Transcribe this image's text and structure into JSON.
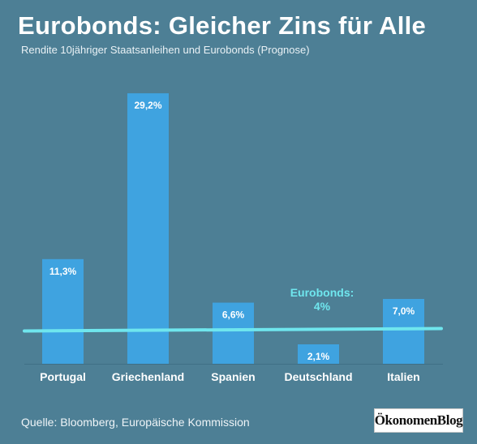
{
  "title": "Eurobonds: Gleicher Zins für Alle",
  "subtitle": "Rendite 10jähriger Staatsanleihen und Eurobonds (Prognose)",
  "source": "Quelle: Bloomberg, Europäische Kommission",
  "logo": "ÖkonomenBlog",
  "colors": {
    "background": "#4d7f95",
    "bar": "#3fa3e0",
    "eurobond_line": "#6fe6ee",
    "eurobond_label": "#6fe6ee"
  },
  "chart_data": {
    "type": "bar",
    "title": "Eurobonds: Gleicher Zins für Alle",
    "subtitle": "Rendite 10jähriger Staatsanleihen und Eurobonds (Prognose)",
    "categories": [
      "Portugal",
      "Griechenland",
      "Spanien",
      "Deutschland",
      "Italien"
    ],
    "values": [
      11.3,
      29.2,
      6.6,
      2.1,
      7.0
    ],
    "value_labels": [
      "11,3%",
      "29,2%",
      "6,6%",
      "2,1%",
      "7,0%"
    ],
    "unit": "%",
    "ylim": [
      0,
      30
    ],
    "grid": false,
    "reference_line": {
      "label_line1": "Eurobonds:",
      "label_line2": "4%",
      "value": 4
    }
  }
}
